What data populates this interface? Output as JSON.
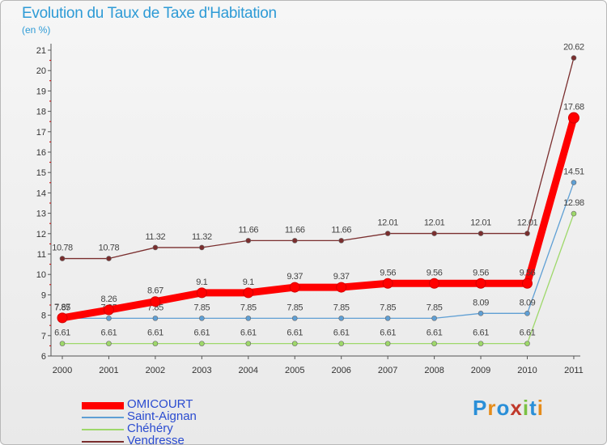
{
  "title": "Evolution du Taux de Taxe d'Habitation",
  "subtitle": "(en %)",
  "brand": "Proxiti",
  "colors": {
    "title": "#2e9bd6",
    "legend_text": "#2a4bd0",
    "axis": "#555555",
    "grid_tick": "#cc0000"
  },
  "chart_data": {
    "type": "line",
    "title": "Evolution du Taux de Taxe d'Habitation",
    "ylabel": "(en %)",
    "xlabel": "",
    "categories": [
      "2000",
      "2001",
      "2002",
      "2003",
      "2004",
      "2005",
      "2006",
      "2007",
      "2008",
      "2009",
      "2010",
      "2011"
    ],
    "ylim": [
      6,
      21
    ],
    "yticks": [
      6,
      7,
      8,
      9,
      10,
      11,
      12,
      13,
      14,
      15,
      16,
      17,
      18,
      19,
      20,
      21
    ],
    "legend_position": "bottom-left",
    "series": [
      {
        "name": "OMICOURT",
        "color": "#ff0000",
        "emphasis": "thick",
        "values": [
          7.87,
          8.26,
          8.67,
          9.1,
          9.1,
          9.37,
          9.37,
          9.56,
          9.56,
          9.56,
          9.56,
          17.68
        ],
        "labels": [
          "7.87",
          "8.26",
          "8.67",
          "9.1",
          "9.1",
          "9.37",
          "9.37",
          "9.56",
          "9.56",
          "9.56",
          "9.56",
          "17.68"
        ]
      },
      {
        "name": "Saint-Aignan",
        "color": "#5f9fd4",
        "emphasis": "thin",
        "values": [
          7.85,
          7.85,
          7.85,
          7.85,
          7.85,
          7.85,
          7.85,
          7.85,
          7.85,
          8.09,
          8.09,
          14.51
        ],
        "labels": [
          "7.85",
          "7.85",
          "7.85",
          "7.85",
          "7.85",
          "7.85",
          "7.85",
          "7.85",
          "7.85",
          "8.09",
          "8.09",
          "14.51"
        ]
      },
      {
        "name": "Chéhéry",
        "color": "#9ed86a",
        "emphasis": "thin",
        "values": [
          6.61,
          6.61,
          6.61,
          6.61,
          6.61,
          6.61,
          6.61,
          6.61,
          6.61,
          6.61,
          6.61,
          12.98
        ],
        "labels": [
          "6.61",
          "6.61",
          "6.61",
          "6.61",
          "6.61",
          "6.61",
          "6.61",
          "6.61",
          "6.61",
          "6.61",
          "6.61",
          "12.98"
        ]
      },
      {
        "name": "Vendresse",
        "color": "#7a2e2e",
        "emphasis": "thin",
        "values": [
          10.78,
          10.78,
          11.32,
          11.32,
          11.66,
          11.66,
          11.66,
          12.01,
          12.01,
          12.01,
          12.01,
          20.62
        ],
        "labels": [
          "10.78",
          "10.78",
          "11.32",
          "11.32",
          "11.66",
          "11.66",
          "11.66",
          "12.01",
          "12.01",
          "12.01",
          "12.01",
          "20.62"
        ]
      }
    ]
  }
}
